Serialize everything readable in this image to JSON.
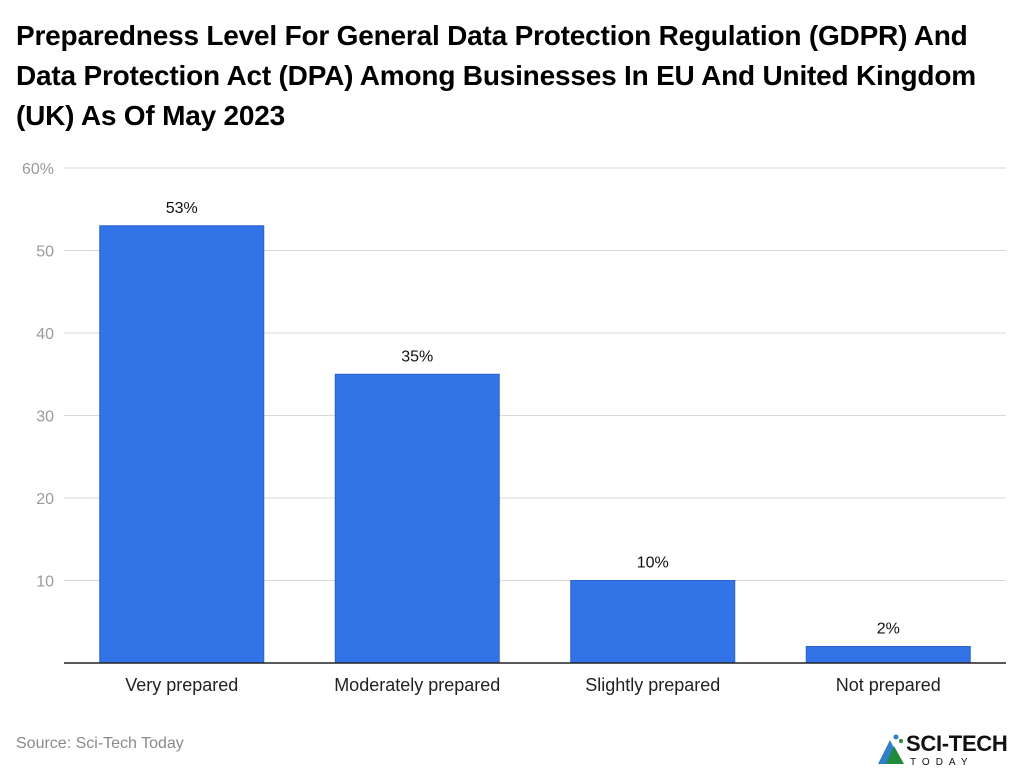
{
  "chart_data": {
    "type": "bar",
    "title": "Preparedness Level For General Data Protection Regulation (GDPR) And Data Protection Act (DPA) Among Businesses In EU And United Kingdom (UK) As Of May 2023",
    "categories": [
      "Very prepared",
      "Moderately prepared",
      "Slightly prepared",
      "Not prepared"
    ],
    "values": [
      53,
      35,
      10,
      2
    ],
    "data_labels": [
      "53%",
      "35%",
      "10%",
      "2%"
    ],
    "xlabel": "",
    "ylabel": "",
    "ylim": [
      0,
      60
    ],
    "yticks": [
      10,
      20,
      30,
      40,
      50,
      60
    ],
    "ytick_labels": [
      "10",
      "20",
      "30",
      "40",
      "50",
      "60%"
    ],
    "grid": true,
    "bar_color": "#3373e8"
  },
  "source": "Source: Sci-Tech Today",
  "logo": {
    "line1": "SCI-TECH",
    "line2": "TODAY"
  }
}
